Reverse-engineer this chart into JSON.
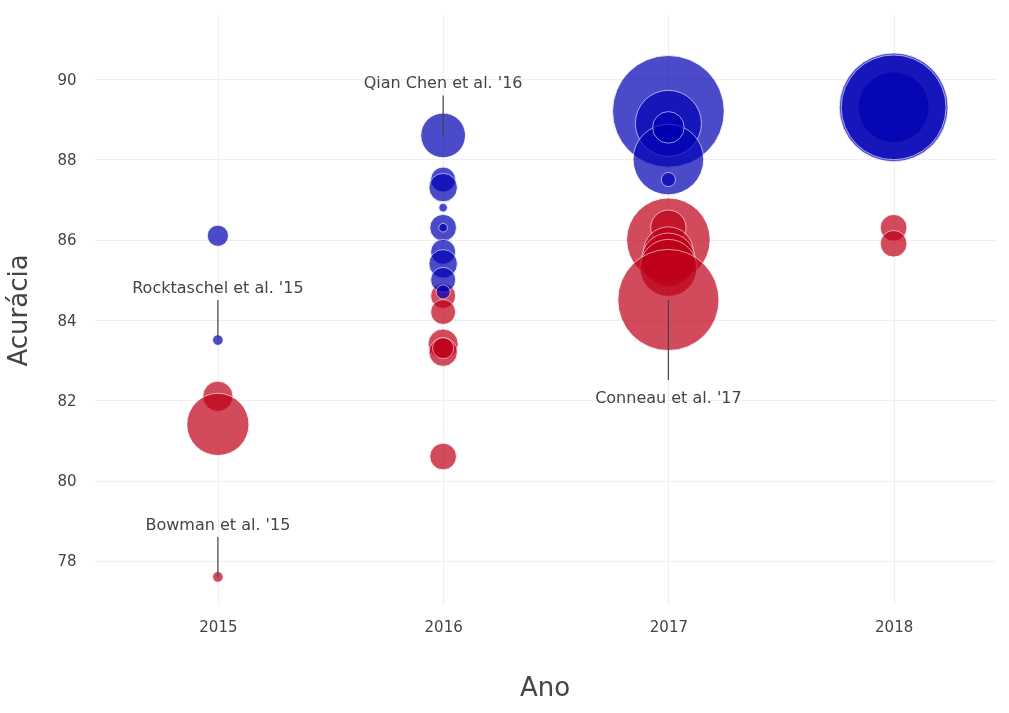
{
  "chart_data": {
    "type": "bubble",
    "xlabel": "Ano",
    "ylabel": "Acurácia",
    "xlim": [
      2014.45,
      2018.45
    ],
    "xticks": [
      2015,
      2016,
      2017,
      2018
    ],
    "ylim": [
      76.9,
      91.6
    ],
    "yticks": [
      78,
      80,
      82,
      84,
      86,
      88,
      90
    ],
    "grid": true,
    "series": [
      {
        "color": "#0000b4",
        "x": [
          2015,
          2015,
          2016,
          2016,
          2016,
          2016,
          2016,
          2016,
          2016,
          2016,
          2016,
          2016,
          2017,
          2017,
          2017,
          2017,
          2017,
          2018,
          2018,
          2018
        ],
        "values": [
          86.1,
          83.5,
          88.6,
          87.5,
          87.3,
          86.8,
          86.3,
          86.3,
          85.7,
          85.4,
          85.0,
          84.7,
          89.2,
          88.9,
          88.0,
          88.8,
          87.5,
          89.3,
          89.3,
          89.3
        ],
        "sizes": [
          0.036,
          0.009,
          0.16,
          0.05,
          0.065,
          0.006,
          0.057,
          0.006,
          0.05,
          0.065,
          0.05,
          0.016,
          1,
          0.35,
          0.4,
          0.08,
          0.016,
          0.4,
          0.95,
          0.88
        ]
      },
      {
        "color": "#be0019",
        "x": [
          2015,
          2015,
          2015,
          2016,
          2016,
          2016,
          2016,
          2016,
          2016,
          2017,
          2017,
          2017,
          2017,
          2017,
          2017,
          2018,
          2018
        ],
        "values": [
          82.1,
          81.4,
          77.6,
          84.6,
          84.2,
          83.4,
          83.2,
          83.3,
          80.6,
          86.0,
          86.3,
          85.7,
          85.5,
          85.3,
          84.5,
          86.3,
          85.9
        ],
        "sizes": [
          0.073,
          0.31,
          0.009,
          0.05,
          0.05,
          0.073,
          0.065,
          0.036,
          0.057,
          0.56,
          0.1,
          0.2,
          0.23,
          0.26,
          0.82,
          0.057,
          0.057
        ]
      }
    ],
    "annotations": [
      {
        "text": "Qian Chen et al. '16",
        "x": 2016,
        "y": 88.6
      },
      {
        "text": "Rocktaschel et al. '15",
        "x": 2015,
        "y": 83.5
      },
      {
        "text": "Bowman et al. '15",
        "x": 2015,
        "y": 77.6
      },
      {
        "text": "Conneau et al. '17",
        "x": 2017,
        "y": 84.5
      }
    ]
  }
}
